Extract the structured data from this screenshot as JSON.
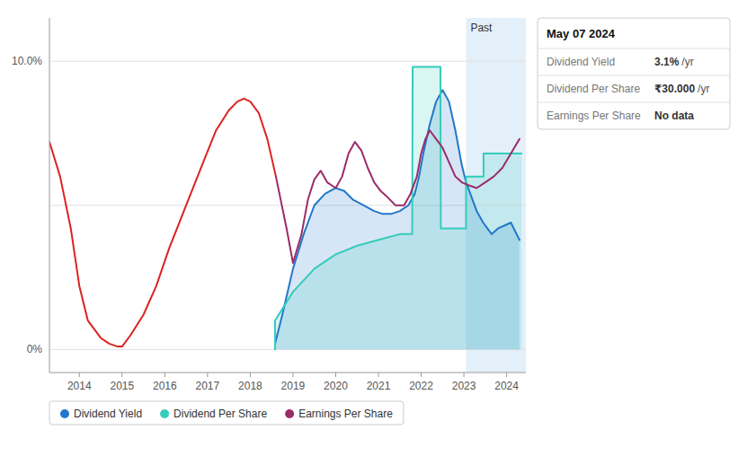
{
  "chart_data": {
    "type": "line",
    "xlim": [
      2013.3,
      2024.45
    ],
    "ylim": [
      -0.008,
      0.115
    ],
    "xticks": [
      2014,
      2015,
      2016,
      2017,
      2018,
      2019,
      2020,
      2021,
      2022,
      2023,
      2024
    ],
    "yticks": [
      {
        "value": 0.0,
        "label": "0%"
      },
      {
        "value": 0.05,
        "label": null
      },
      {
        "value": 0.1,
        "label": "10.0%"
      }
    ],
    "grid": "y",
    "legend": "bottom",
    "series": [
      {
        "name": "Dividend Yield",
        "type": "area",
        "color": "#2277cc",
        "x": [
          2018.58,
          2018.75,
          2019.0,
          2019.25,
          2019.5,
          2019.75,
          2020.0,
          2020.2,
          2020.4,
          2020.65,
          2020.9,
          2021.1,
          2021.3,
          2021.5,
          2021.7,
          2021.85,
          2021.95,
          2022.05,
          2022.2,
          2022.35,
          2022.5,
          2022.65,
          2022.8,
          2022.95,
          2023.05,
          2023.15,
          2023.3,
          2023.45,
          2023.55,
          2023.65,
          2023.8,
          2023.95,
          2024.1,
          2024.3
        ],
        "values": [
          0.002,
          0.012,
          0.028,
          0.04,
          0.05,
          0.054,
          0.056,
          0.055,
          0.052,
          0.05,
          0.048,
          0.047,
          0.047,
          0.048,
          0.05,
          0.054,
          0.06,
          0.068,
          0.078,
          0.086,
          0.09,
          0.086,
          0.076,
          0.064,
          0.058,
          0.054,
          0.048,
          0.044,
          0.042,
          0.04,
          0.042,
          0.043,
          0.044,
          0.038
        ]
      },
      {
        "name": "Dividend Per Share",
        "type": "area",
        "color": "#33ccbb",
        "x": [
          2018.58,
          2018.58,
          2019.0,
          2019.5,
          2020.0,
          2020.5,
          2021.0,
          2021.5,
          2021.79,
          2021.8,
          2021.8,
          2022.45,
          2022.45,
          2022.46,
          2022.46,
          2022.95,
          2022.95,
          2022.96,
          2022.96,
          2023.05,
          2023.05,
          2023.45,
          2023.45,
          2023.46,
          2023.46,
          2024.0,
          2024.0,
          2024.35
        ],
        "values": [
          0.0,
          0.01,
          0.02,
          0.028,
          0.033,
          0.036,
          0.038,
          0.04,
          0.04,
          0.098,
          0.098,
          0.098,
          0.098,
          0.042,
          0.042,
          0.042,
          0.042,
          0.042,
          0.042,
          0.042,
          0.06,
          0.06,
          0.06,
          0.06,
          0.068,
          0.068,
          0.068,
          0.068
        ]
      },
      {
        "name": "Earnings Per Share",
        "type": "line",
        "color": "#9b2c6a",
        "colors": [
          "#dd2222",
          "#dd2222",
          "#dd2222",
          "#dd2222",
          "#dd2222",
          "#dd2222",
          "#dd2222",
          "#dd2222",
          "#dd2222",
          "#dd2222",
          "#dd2222",
          "#dd2222",
          "#dd2222",
          "#dd2222",
          "#dd2222",
          "#dd2222",
          "#dd2222",
          "#dd2222",
          "#dd2222",
          "#dd2222",
          "#dd2222",
          "#dd2222",
          "#9b2c6a",
          "#9b2c6a",
          "#9b2c6a",
          "#9b2c6a",
          "#9b2c6a",
          "#9b2c6a",
          "#9b2c6a",
          "#9b2c6a",
          "#9b2c6a",
          "#9b2c6a",
          "#9b2c6a",
          "#9b2c6a",
          "#9b2c6a",
          "#9b2c6a",
          "#9b2c6a",
          "#9b2c6a",
          "#9b2c6a",
          "#9b2c6a",
          "#9b2c6a",
          "#9b2c6a",
          "#9b2c6a",
          "#9b2c6a",
          "#9b2c6a",
          "#9b2c6a",
          "#9b2c6a",
          "#9b2c6a",
          "#9b2c6a",
          "#9b2c6a",
          "#9b2c6a",
          "#9b2c6a",
          "#9b2c6a",
          "#9b2c6a",
          "#9b2c6a",
          "#9b2c6a",
          "#9b2c6a",
          "#9b2c6a"
        ],
        "x": [
          2013.3,
          2013.55,
          2013.8,
          2014.0,
          2014.2,
          2014.5,
          2014.7,
          2014.9,
          2015.0,
          2015.2,
          2015.5,
          2015.8,
          2016.1,
          2016.5,
          2016.9,
          2017.2,
          2017.5,
          2017.7,
          2017.85,
          2018.0,
          2018.2,
          2018.4,
          2018.6,
          2018.85,
          2019.0,
          2019.2,
          2019.35,
          2019.5,
          2019.65,
          2019.8,
          2020.0,
          2020.15,
          2020.3,
          2020.45,
          2020.6,
          2020.75,
          2020.9,
          2021.05,
          2021.2,
          2021.4,
          2021.6,
          2021.75,
          2021.9,
          2022.0,
          2022.1,
          2022.2,
          2022.35,
          2022.5,
          2022.65,
          2022.8,
          2022.95,
          2023.1,
          2023.3,
          2023.5,
          2023.7,
          2023.9,
          2024.1,
          2024.3
        ],
        "values": [
          0.072,
          0.06,
          0.042,
          0.022,
          0.01,
          0.004,
          0.002,
          0.001,
          0.001,
          0.005,
          0.012,
          0.022,
          0.035,
          0.05,
          0.065,
          0.076,
          0.083,
          0.086,
          0.087,
          0.086,
          0.082,
          0.073,
          0.06,
          0.042,
          0.03,
          0.04,
          0.052,
          0.059,
          0.062,
          0.058,
          0.056,
          0.06,
          0.068,
          0.072,
          0.069,
          0.063,
          0.058,
          0.055,
          0.053,
          0.05,
          0.05,
          0.054,
          0.06,
          0.068,
          0.073,
          0.076,
          0.073,
          0.07,
          0.065,
          0.06,
          0.058,
          0.057,
          0.056,
          0.058,
          0.06,
          0.063,
          0.068,
          0.073
        ]
      }
    ],
    "annotations": [
      {
        "text": "Past",
        "x": 2023.05
      }
    ],
    "tooltip": {
      "title": "May 07 2024",
      "rows": [
        {
          "label": "Dividend Yield",
          "value": "3.1%",
          "unit": "/yr"
        },
        {
          "label": "Dividend Per Share",
          "value": "₹30.000",
          "unit": "/yr"
        },
        {
          "label": "Earnings Per Share",
          "value": "No data"
        }
      ]
    }
  }
}
